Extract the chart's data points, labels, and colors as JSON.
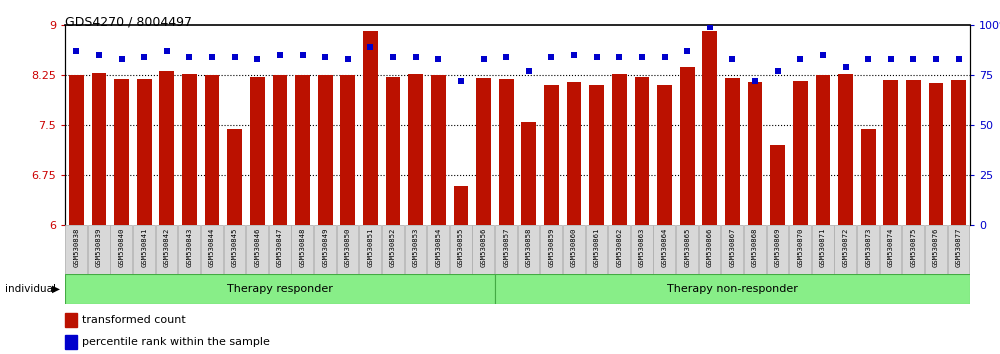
{
  "title": "GDS4270 / 8004497",
  "samples": [
    "GSM530838",
    "GSM530839",
    "GSM530840",
    "GSM530841",
    "GSM530842",
    "GSM530843",
    "GSM530844",
    "GSM530845",
    "GSM530846",
    "GSM530847",
    "GSM530848",
    "GSM530849",
    "GSM530850",
    "GSM530851",
    "GSM530852",
    "GSM530853",
    "GSM530854",
    "GSM530855",
    "GSM530856",
    "GSM530857",
    "GSM530858",
    "GSM530859",
    "GSM530860",
    "GSM530861",
    "GSM530862",
    "GSM530863",
    "GSM530864",
    "GSM530865",
    "GSM530866",
    "GSM530867",
    "GSM530868",
    "GSM530869",
    "GSM530870",
    "GSM530871",
    "GSM530872",
    "GSM530873",
    "GSM530874",
    "GSM530875",
    "GSM530876",
    "GSM530877"
  ],
  "bar_values": [
    8.25,
    8.28,
    8.18,
    8.18,
    8.3,
    8.26,
    8.25,
    7.44,
    8.22,
    8.25,
    8.25,
    8.25,
    8.25,
    8.9,
    8.22,
    8.26,
    8.25,
    6.58,
    8.2,
    8.18,
    7.54,
    8.1,
    8.14,
    8.1,
    8.26,
    8.21,
    8.1,
    8.37,
    8.9,
    8.2,
    8.14,
    7.2,
    8.16,
    8.25,
    8.26,
    7.44,
    8.17,
    8.17,
    8.12,
    8.17
  ],
  "percentile_values": [
    87,
    85,
    83,
    84,
    87,
    84,
    84,
    84,
    83,
    85,
    85,
    84,
    83,
    89,
    84,
    84,
    83,
    72,
    83,
    84,
    77,
    84,
    85,
    84,
    84,
    84,
    84,
    87,
    99,
    83,
    72,
    77,
    83,
    85,
    79,
    83,
    83,
    83,
    83,
    83
  ],
  "bar_color": "#bb1100",
  "dot_color": "#0000cc",
  "ylim_left": [
    6,
    9
  ],
  "ylim_right": [
    0,
    100
  ],
  "yticks_left": [
    6,
    6.75,
    7.5,
    8.25,
    9
  ],
  "yticks_right": [
    0,
    25,
    50,
    75,
    100
  ],
  "group1_label": "Therapy responder",
  "group2_label": "Therapy non-responder",
  "group1_count": 19,
  "group2_count": 21,
  "legend_bar_label": "transformed count",
  "legend_dot_label": "percentile rank within the sample",
  "individual_label": "individual",
  "background_color": "#ffffff",
  "group_box_color": "#88ee88",
  "group_box_edge": "#44aa44"
}
